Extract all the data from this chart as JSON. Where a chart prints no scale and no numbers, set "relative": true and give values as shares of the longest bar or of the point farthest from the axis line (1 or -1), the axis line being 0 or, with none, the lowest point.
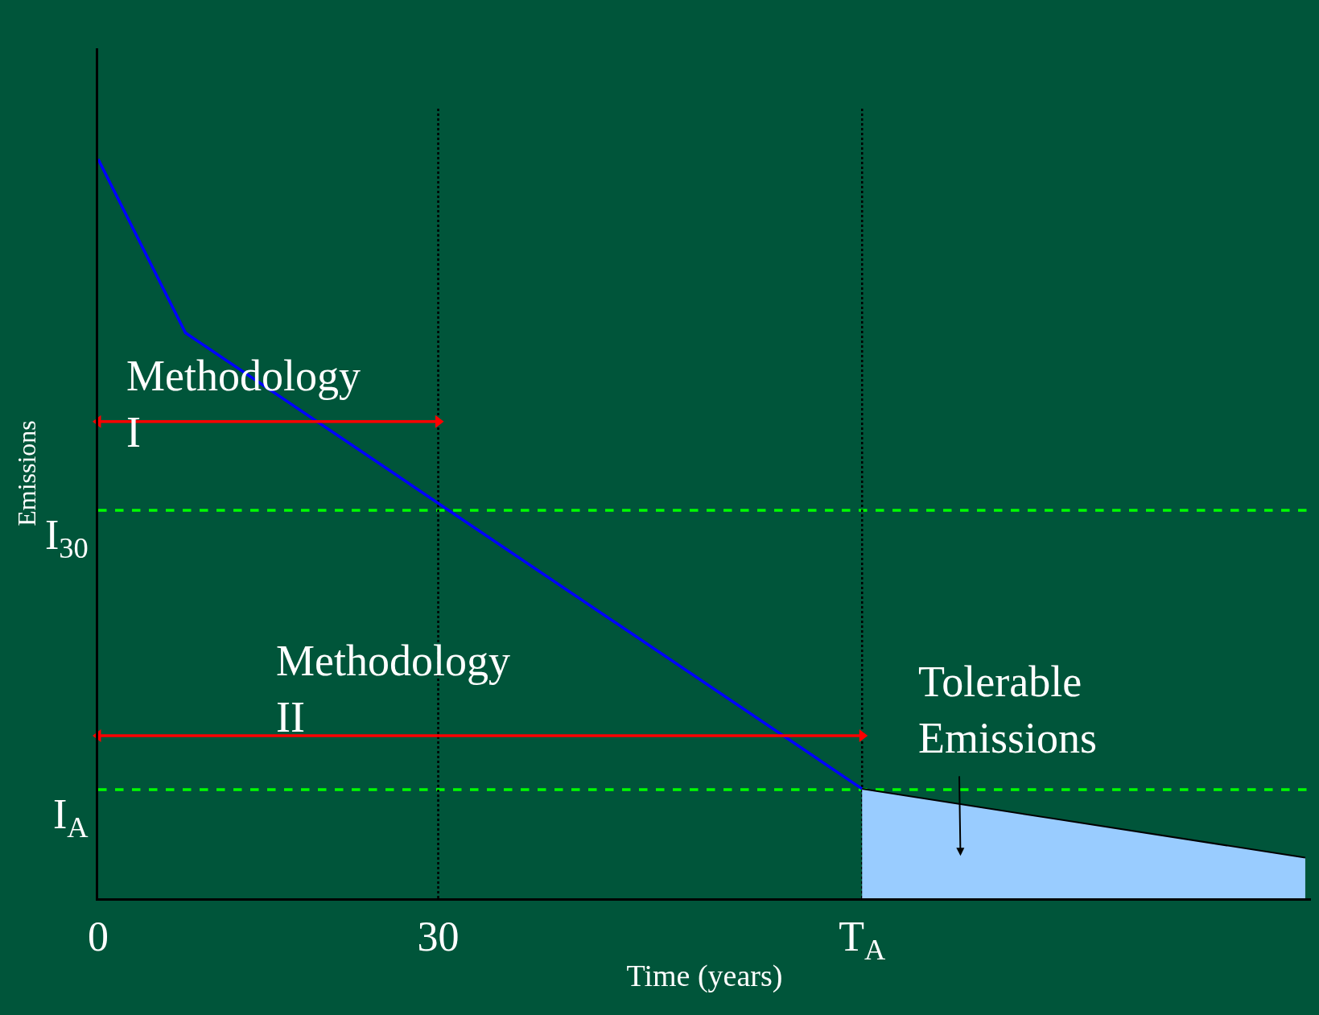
{
  "chart_data": {
    "type": "line",
    "relative": true,
    "xlabel": "Time (years)",
    "ylabel": "Emissions",
    "x": [
      0,
      7.7,
      67.4
    ],
    "xlim": [
      0,
      107
    ],
    "xticks": [
      0,
      30,
      {
        "value": 67.4,
        "label": "T$_{A}$"
      }
    ],
    "series": [
      {
        "color": "#0000ff",
        "values": [
          1,
          0.765,
          0.148
        ]
      },
      {
        "type": "area",
        "color": "#99ccff",
        "x": [
          67.4,
          106.5
        ],
        "values": [
          0.148,
          0.055
        ]
      },
      {
        "color": "#ff0000",
        "x": [
          0,
          30
        ],
        "values": [
          0.645,
          0.645
        ],
        "marker": "triangle"
      },
      {
        "color": "#ff0000",
        "x": [
          0,
          67.4
        ],
        "values": [
          0.22,
          0.22
        ],
        "marker": "triangle"
      }
    ],
    "ref_lines": [
      {
        "axis": "y",
        "value": 0.525,
        "label": "I$_{30}$",
        "color": "#00ff00",
        "line_style": "dashed"
      },
      {
        "axis": "y",
        "value": 0.147,
        "label": "I$_{A}$",
        "color": "#00ff00",
        "line_style": "dashed"
      },
      {
        "axis": "x",
        "value": 30,
        "color": "#000000",
        "line_style": "dotted"
      },
      {
        "axis": "x",
        "value": 67.4,
        "color": "#000000",
        "line_style": "dotted"
      }
    ],
    "annotations": [
      "Methodology\nI",
      "Methodology\nII",
      "Tolerable\nEmissions"
    ],
    "grid": false,
    "marker": "none",
    "line_style": "solid"
  }
}
